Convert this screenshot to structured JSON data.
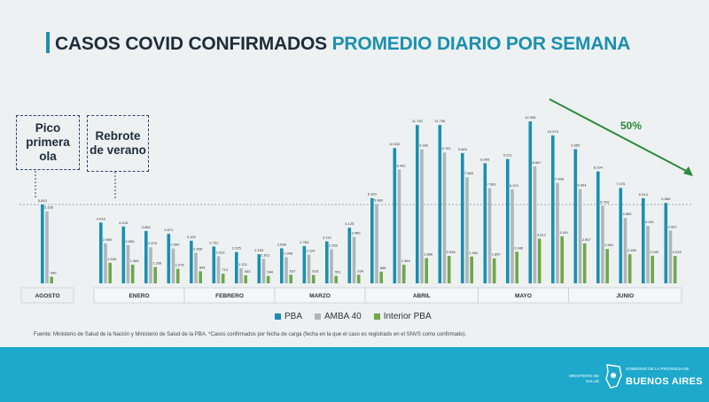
{
  "header": {
    "title_part1": "CASOS COVID CONFIRMADOS",
    "title_part2": "PROMEDIO DIARIO POR SEMANA"
  },
  "callouts": {
    "first_wave": "Pico primera ola",
    "summer": "Rebrote de verano"
  },
  "trend": {
    "label": "50%"
  },
  "colors": {
    "pba": "#1b8fb0",
    "amba": "#b0b5b8",
    "interior": "#6fa74a",
    "accent": "#1c8fb0",
    "arrow": "#2c8a3a",
    "footer": "#1da8cc"
  },
  "legend": {
    "pba": "PBA",
    "amba": "AMBA 40",
    "interior": "Interior PBA"
  },
  "source": "Fuente: Ministerio de Salud de la Nación y Ministerio de Salud de la PBA. *Casos confirmados por fecha de carga (fecha en la que el caso es registrado en el SNVS como confirmado).",
  "footer": {
    "ministry": "MINISTERIO DE SALUD",
    "gov_sub": "GOBIERNO DE LA PROVINCIA DE",
    "gov_main": "BUENOS AIRES"
  },
  "chart_data": {
    "type": "bar",
    "ylim": [
      0,
      13000
    ],
    "reference_line": 5843,
    "series_names": [
      "PBA",
      "AMBA 40",
      "Interior PBA"
    ],
    "groups": [
      {
        "month": "AGOSTO",
        "weeks": [
          {
            "pba": 5843,
            "amba": 5335,
            "interior": 490
          }
        ]
      },
      {
        "month": "ENERO",
        "weeks": [
          {
            "pba": 4510,
            "amba": 2969,
            "interior": 1526
          },
          {
            "pba": 4215,
            "amba": 2836,
            "interior": 1389
          },
          {
            "pba": 3882,
            "amba": 2676,
            "interior": 1206
          },
          {
            "pba": 3671,
            "amba": 2590,
            "interior": 1076
          }
        ]
      },
      {
        "month": "FEBRERO",
        "weeks": [
          {
            "pba": 3162,
            "amba": 2268,
            "interior": 894
          },
          {
            "pba": 2731,
            "amba": 2010,
            "interior": 713
          },
          {
            "pba": 2325,
            "amba": 1121,
            "interior": 593
          },
          {
            "pba": 2163,
            "amba": 1811,
            "interior": 544
          }
        ]
      },
      {
        "month": "MARZO",
        "weeks": [
          {
            "pba": 2596,
            "amba": 1948,
            "interior": 637
          },
          {
            "pba": 2763,
            "amba": 2124,
            "interior": 618
          },
          {
            "pba": 3113,
            "amba": 2532,
            "interior": 551
          },
          {
            "pba": 4125,
            "amba": 3450,
            "interior": 634
          }
        ]
      },
      {
        "month": "ABRIL",
        "weeks": [
          {
            "pba": 6320,
            "amba": 5880,
            "interior": 868
          },
          {
            "pba": 10032,
            "amba": 8442,
            "interior": 1384
          },
          {
            "pba": 11740,
            "amba": 9939,
            "interior": 1866
          },
          {
            "pba": 11746,
            "amba": 9703,
            "interior": 2036
          },
          {
            "pba": 9663,
            "amba": 7869,
            "interior": 1984
          }
        ]
      },
      {
        "month": "MAYO",
        "weeks": [
          {
            "pba": 8905,
            "amba": 7063,
            "interior": 1857
          },
          {
            "pba": 9221,
            "amba": 6970,
            "interior": 2346
          },
          {
            "pba": 12008,
            "amba": 8667,
            "interior": 3312
          },
          {
            "pba": 10973,
            "amba": 7448,
            "interior": 3491
          }
        ]
      },
      {
        "month": "JUNIO",
        "weeks": [
          {
            "pba": 9950,
            "amba": 6994,
            "interior": 2967
          },
          {
            "pba": 8294,
            "amba": 5743,
            "interior": 2551
          },
          {
            "pba": 7076,
            "amba": 4855,
            "interior": 2158
          },
          {
            "pba": 6314,
            "amba": 4261,
            "interior": 2049
          },
          {
            "pba": 5965,
            "amba": 3922,
            "interior": 2025
          }
        ]
      }
    ]
  }
}
